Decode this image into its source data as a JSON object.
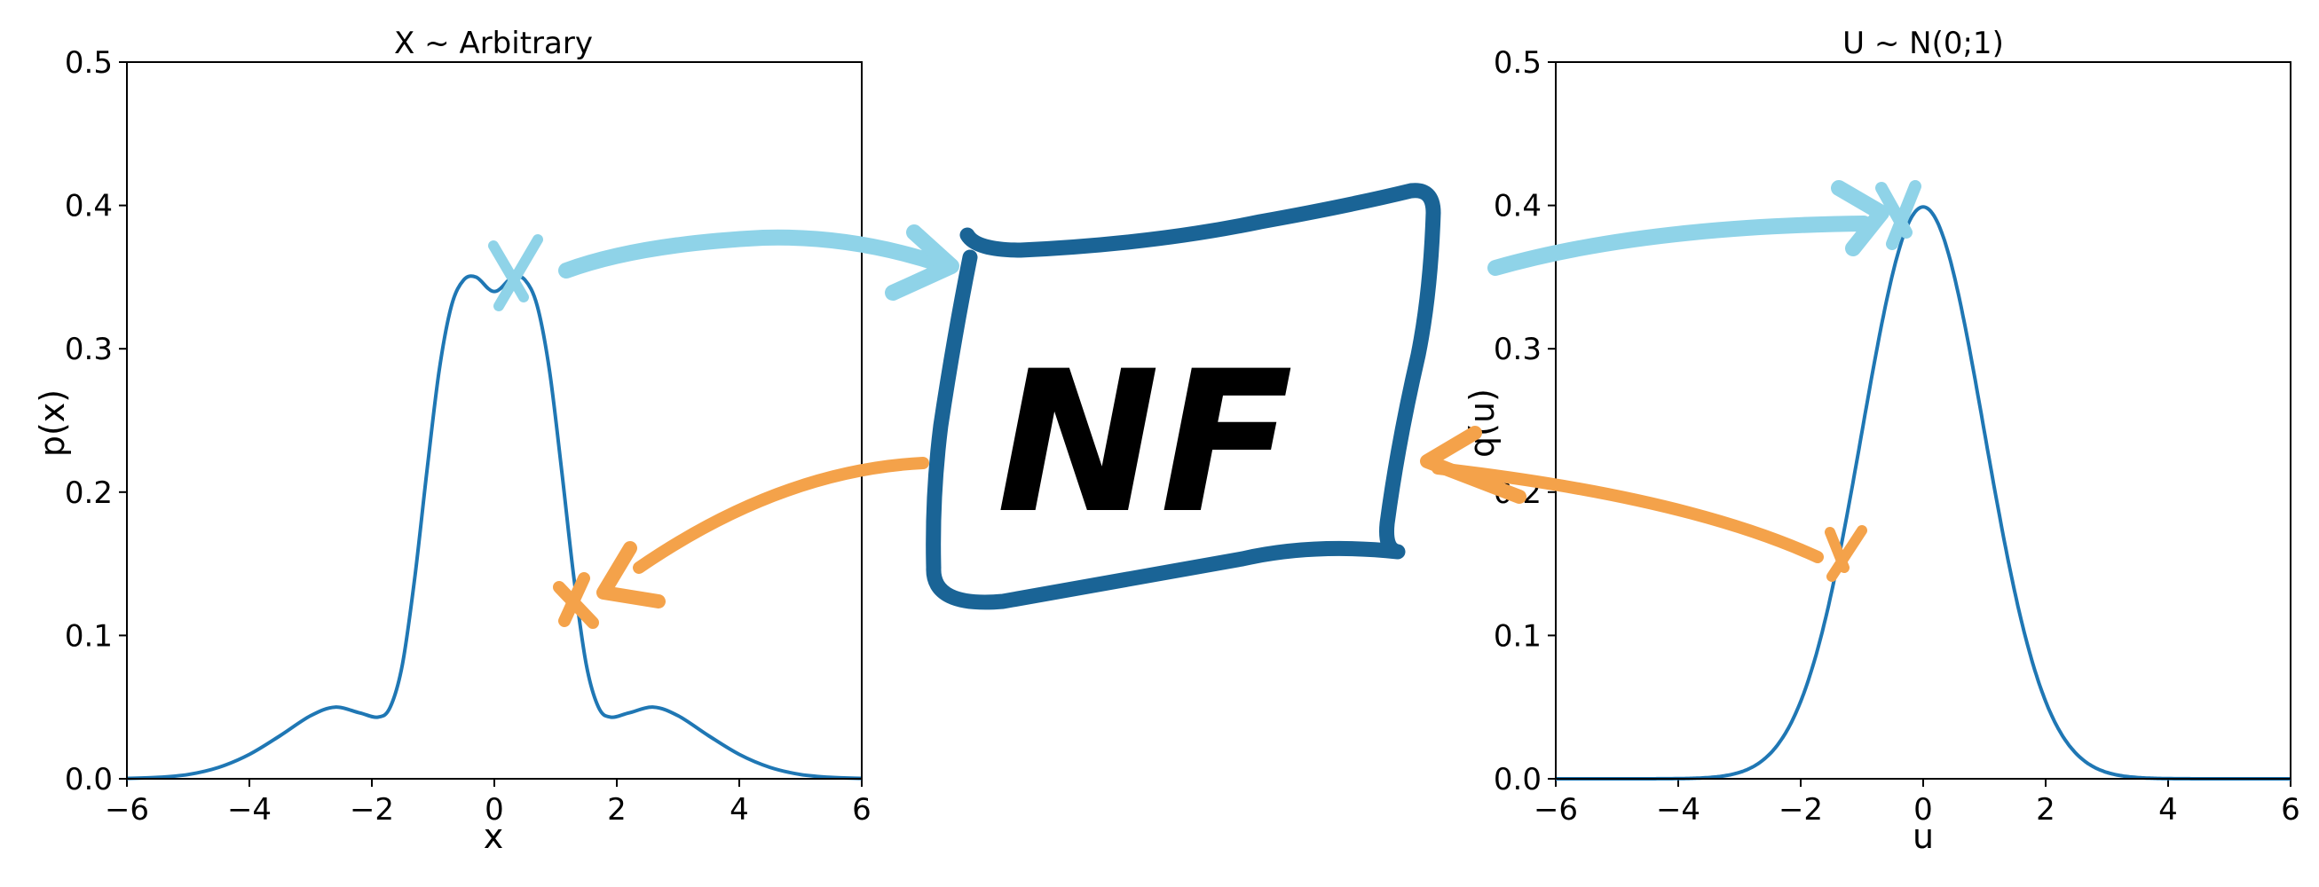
{
  "figure": {
    "center_label": "NF",
    "colors": {
      "curve": "#1f77b4",
      "forward_arrow": "#8fd3e8",
      "reverse_arrow": "#f4a24a",
      "nf_box": "#1a6496"
    }
  },
  "chart_data": [
    {
      "type": "line",
      "title": "X ~ Arbitrary",
      "xlabel": "x",
      "ylabel": "p(x)",
      "xlim": [
        -6,
        6
      ],
      "ylim": [
        0,
        0.5
      ],
      "xticks": [
        -6,
        -4,
        -2,
        0,
        2,
        4,
        6
      ],
      "yticks": [
        0.0,
        0.1,
        0.2,
        0.3,
        0.4,
        0.5
      ],
      "grid": false,
      "series": [
        {
          "color": "#1f77b4",
          "x": [
            -6,
            -5.5,
            -5,
            -4.5,
            -4,
            -3.5,
            -3,
            -2.6,
            -2.2,
            -1.9,
            -1.7,
            -1.5,
            -1.3,
            -1.1,
            -0.9,
            -0.7,
            -0.5,
            -0.3,
            -0.1,
            0,
            0.1,
            0.3,
            0.5,
            0.7,
            0.9,
            1.1,
            1.3,
            1.5,
            1.7,
            1.9,
            2.2,
            2.6,
            3,
            3.5,
            4,
            4.5,
            5,
            5.5,
            6
          ],
          "y": [
            0.0003,
            0.001,
            0.003,
            0.008,
            0.017,
            0.03,
            0.044,
            0.05,
            0.046,
            0.043,
            0.05,
            0.08,
            0.14,
            0.215,
            0.285,
            0.33,
            0.348,
            0.35,
            0.342,
            0.34,
            0.342,
            0.35,
            0.348,
            0.33,
            0.285,
            0.215,
            0.14,
            0.08,
            0.05,
            0.043,
            0.046,
            0.05,
            0.044,
            0.03,
            0.017,
            0.008,
            0.003,
            0.001,
            0.0003
          ]
        }
      ],
      "annotation": {
        "marker": "x",
        "forward_point": [
          0.4,
          0.35
        ],
        "reverse_point": [
          1.3,
          0.12
        ]
      }
    },
    {
      "type": "line",
      "title": "U ~ N(0;1)",
      "xlabel": "u",
      "ylabel": "q(u)",
      "xlim": [
        -6,
        6
      ],
      "ylim": [
        0,
        0.5
      ],
      "xticks": [
        -6,
        -4,
        -2,
        0,
        2,
        4,
        6
      ],
      "yticks": [
        0.0,
        0.1,
        0.2,
        0.3,
        0.4,
        0.5
      ],
      "grid": false,
      "series": [
        {
          "color": "#1f77b4",
          "distribution": "normal",
          "mean": 0,
          "std": 1
        }
      ],
      "annotation": {
        "marker": "x",
        "forward_point": [
          -0.1,
          0.4
        ],
        "reverse_point": [
          -1.4,
          0.15
        ]
      }
    }
  ]
}
